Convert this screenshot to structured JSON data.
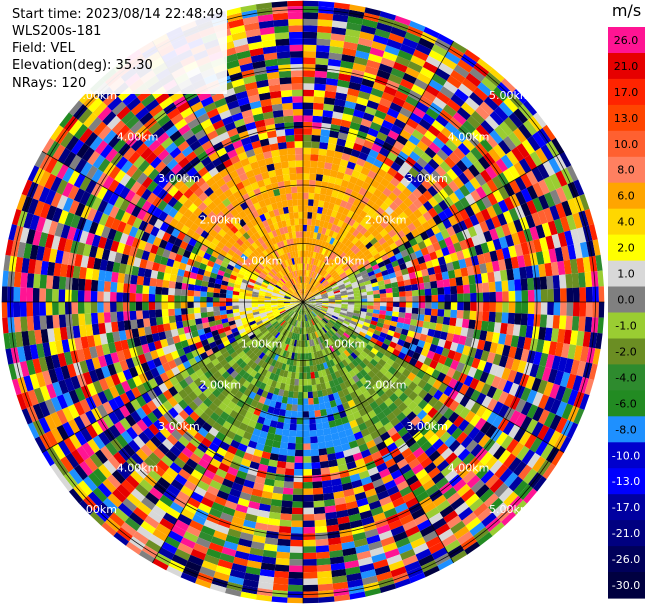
{
  "header": {
    "start_time": "Start time: 2023/08/14 22:48:49",
    "device": "WLS200s-181",
    "field": "Field: VEL",
    "elevation": "Elevation(deg): 35.30",
    "nrays": "NRays: 120"
  },
  "colorbar": {
    "unit": "m/s",
    "bands": [
      {
        "label": "26.0",
        "color": "#ff1493"
      },
      {
        "label": "21.0",
        "color": "#e60000"
      },
      {
        "label": "17.0",
        "color": "#ff2400"
      },
      {
        "label": "13.0",
        "color": "#ff4500"
      },
      {
        "label": "10.0",
        "color": "#ff6030"
      },
      {
        "label": "8.0",
        "color": "#ff8060"
      },
      {
        "label": "6.0",
        "color": "#ffa500"
      },
      {
        "label": "4.0",
        "color": "#ffd700"
      },
      {
        "label": "2.0",
        "color": "#ffff00"
      },
      {
        "label": "1.0",
        "color": "#d8d8d8"
      },
      {
        "label": "0.0",
        "color": "#808080"
      },
      {
        "label": "-1.0",
        "color": "#9acd32"
      },
      {
        "label": "-2.0",
        "color": "#6b8e23"
      },
      {
        "label": "-4.0",
        "color": "#2e8b2e"
      },
      {
        "label": "-6.0",
        "color": "#228b22"
      },
      {
        "label": "-8.0",
        "color": "#1e90ff"
      },
      {
        "label": "-10.0",
        "color": "#0000cd"
      },
      {
        "label": "-13.0",
        "color": "#0000ff"
      },
      {
        "label": "-17.0",
        "color": "#0000a0"
      },
      {
        "label": "-21.0",
        "color": "#000080"
      },
      {
        "label": "-26.0",
        "color": "#00005a"
      },
      {
        "label": "-30.0",
        "color": "#000040"
      }
    ]
  },
  "chart_data": {
    "type": "heatmap",
    "subtype": "ppi-polar",
    "field": "VEL",
    "unit": "m/s",
    "nrays": 120,
    "range_rings_km": [
      1,
      2,
      3,
      4,
      5
    ],
    "ring_label_text": [
      "1.00km",
      "2.00km",
      "3.00km",
      "4.00km",
      "5.00km"
    ],
    "sectors": [
      {
        "azimuth_from_deg": 300,
        "azimuth_to_deg": 60,
        "range_km": [
          0,
          2.6
        ],
        "dominant_velocity_ms": 6.0
      },
      {
        "azimuth_from_deg": 60,
        "azimuth_to_deg": 120,
        "range_km": [
          0,
          1.2
        ],
        "dominant_velocity_ms": 0.0
      },
      {
        "azimuth_from_deg": 240,
        "azimuth_to_deg": 300,
        "range_km": [
          0,
          1.2
        ],
        "dominant_velocity_ms": 2.0
      },
      {
        "azimuth_from_deg": 120,
        "azimuth_to_deg": 240,
        "range_km": [
          0,
          2.6
        ],
        "dominant_velocity_ms": -2.0
      },
      {
        "azimuth_from_deg": 160,
        "azimuth_to_deg": 200,
        "range_km": [
          1.6,
          2.6
        ],
        "dominant_velocity_ms": -8.0
      },
      {
        "azimuth_from_deg": 0,
        "azimuth_to_deg": 360,
        "range_km": [
          2.6,
          5.8
        ],
        "dominant_velocity_ms": "noise"
      }
    ],
    "radial_lines_deg": [
      0,
      30,
      60,
      90,
      120,
      150,
      180,
      210,
      240,
      270,
      300,
      330
    ]
  }
}
